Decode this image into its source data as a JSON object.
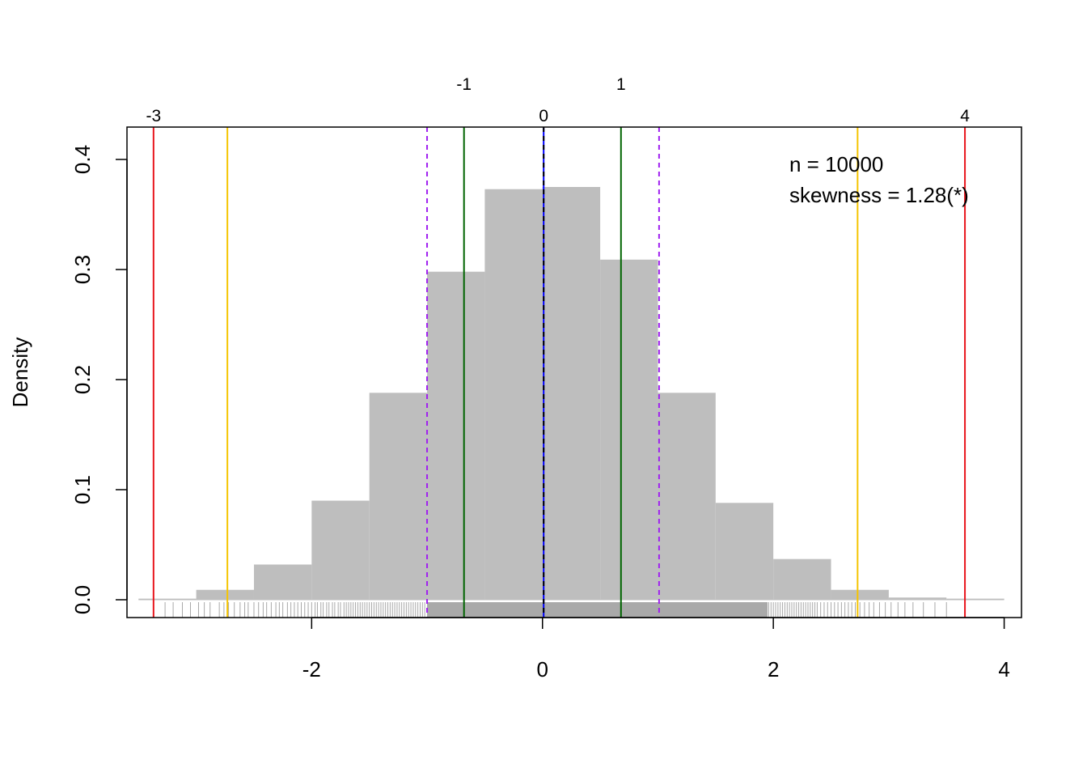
{
  "chart_data": {
    "type": "histogram",
    "ylabel": "Density",
    "xlim": [
      -3.6,
      4.15
    ],
    "ylim": [
      0,
      0.43
    ],
    "x_ticks": [
      -2,
      0,
      2,
      4
    ],
    "x_tick_labels": [
      "-2",
      "0",
      "2",
      "4"
    ],
    "y_ticks": [
      0.0,
      0.1,
      0.2,
      0.3,
      0.4
    ],
    "y_tick_labels": [
      "0.0",
      "0.1",
      "0.2",
      "0.3",
      "0.4"
    ],
    "bins": [
      {
        "x0": -3.5,
        "x1": -3.0,
        "density": 0.001
      },
      {
        "x0": -3.0,
        "x1": -2.5,
        "density": 0.009
      },
      {
        "x0": -2.5,
        "x1": -2.0,
        "density": 0.032
      },
      {
        "x0": -2.0,
        "x1": -1.5,
        "density": 0.09
      },
      {
        "x0": -1.5,
        "x1": -1.0,
        "density": 0.188
      },
      {
        "x0": -1.0,
        "x1": -0.5,
        "density": 0.298
      },
      {
        "x0": -0.5,
        "x1": 0.0,
        "density": 0.373
      },
      {
        "x0": 0.0,
        "x1": 0.5,
        "density": 0.375
      },
      {
        "x0": 0.5,
        "x1": 1.0,
        "density": 0.309
      },
      {
        "x0": 1.0,
        "x1": 1.5,
        "density": 0.188
      },
      {
        "x0": 1.5,
        "x1": 2.0,
        "density": 0.088
      },
      {
        "x0": 2.0,
        "x1": 2.5,
        "density": 0.037
      },
      {
        "x0": 2.5,
        "x1": 3.0,
        "density": 0.009
      },
      {
        "x0": 3.0,
        "x1": 3.5,
        "density": 0.002
      },
      {
        "x0": 3.5,
        "x1": 4.0,
        "density": 0.001
      }
    ],
    "vertical_lines": [
      {
        "x": -3.37,
        "color": "#e8141c",
        "style": "solid",
        "label": "-3",
        "label_row": "inner"
      },
      {
        "x": -2.73,
        "color": "#f5c400",
        "style": "solid",
        "label": "",
        "label_row": "none"
      },
      {
        "x": -1.0,
        "color": "#a020f0",
        "style": "dashed",
        "label": "",
        "label_row": "none"
      },
      {
        "x": -0.68,
        "color": "#006400",
        "style": "solid",
        "label": "-1",
        "label_row": "outer"
      },
      {
        "x": 0.01,
        "color": "#0000ff",
        "style": "solid",
        "label": "0",
        "label_row": "inner"
      },
      {
        "x": 0.01,
        "color": "#000000",
        "style": "dashed",
        "label": "",
        "label_row": "none"
      },
      {
        "x": 0.68,
        "color": "#006400",
        "style": "solid",
        "label": "1",
        "label_row": "outer"
      },
      {
        "x": 1.01,
        "color": "#a020f0",
        "style": "dashed",
        "label": "",
        "label_row": "none"
      },
      {
        "x": 2.73,
        "color": "#f5c400",
        "style": "solid",
        "label": "",
        "label_row": "none"
      },
      {
        "x": 3.66,
        "color": "#e8141c",
        "style": "solid",
        "label": "4",
        "label_row": "inner"
      }
    ],
    "rug": {
      "dense_from": -1.0,
      "dense_to": 1.95,
      "sparse": [
        -3.27,
        -3.2,
        -3.12,
        -3.05,
        -2.98,
        -2.93,
        -2.88,
        -2.8,
        -2.76,
        -2.72,
        -2.67,
        -2.62,
        -2.58,
        -2.55,
        -2.5,
        -2.46,
        -2.42,
        -2.39,
        -2.35,
        -2.31,
        -2.28,
        -2.25,
        -2.21,
        -2.18,
        -2.15,
        -2.12,
        -2.09,
        -2.06,
        -2.03,
        -2.0,
        -1.97,
        -1.95,
        -1.92,
        -1.9,
        -1.87,
        -1.85,
        -1.82,
        -1.8,
        -1.77,
        -1.75,
        -1.72,
        -1.7,
        -1.68,
        -1.66,
        -1.64,
        -1.62,
        -1.6,
        -1.58,
        -1.56,
        -1.54,
        -1.52,
        -1.5,
        -1.48,
        -1.46,
        -1.44,
        -1.42,
        -1.4,
        -1.38,
        -1.36,
        -1.34,
        -1.32,
        -1.3,
        -1.28,
        -1.26,
        -1.24,
        -1.22,
        -1.2,
        -1.18,
        -1.16,
        -1.14,
        -1.12,
        -1.1,
        -1.08,
        -1.06,
        -1.04,
        -1.02,
        1.96,
        1.98,
        2.0,
        2.02,
        2.04,
        2.06,
        2.08,
        2.1,
        2.12,
        2.14,
        2.16,
        2.18,
        2.2,
        2.22,
        2.24,
        2.26,
        2.28,
        2.3,
        2.32,
        2.34,
        2.36,
        2.38,
        2.41,
        2.44,
        2.47,
        2.5,
        2.53,
        2.56,
        2.59,
        2.62,
        2.65,
        2.68,
        2.71,
        2.75,
        2.79,
        2.83,
        2.87,
        2.92,
        2.97,
        3.02,
        3.08,
        3.14,
        3.21,
        3.3,
        3.4,
        3.5
      ]
    },
    "annotations": [
      "n = 10000",
      "skewness = 1.28(*)"
    ]
  },
  "colors": {
    "bar_fill": "#bebebe",
    "rug": "#a9a9a9",
    "baseline": "#bebebe",
    "axis": "#000000"
  }
}
